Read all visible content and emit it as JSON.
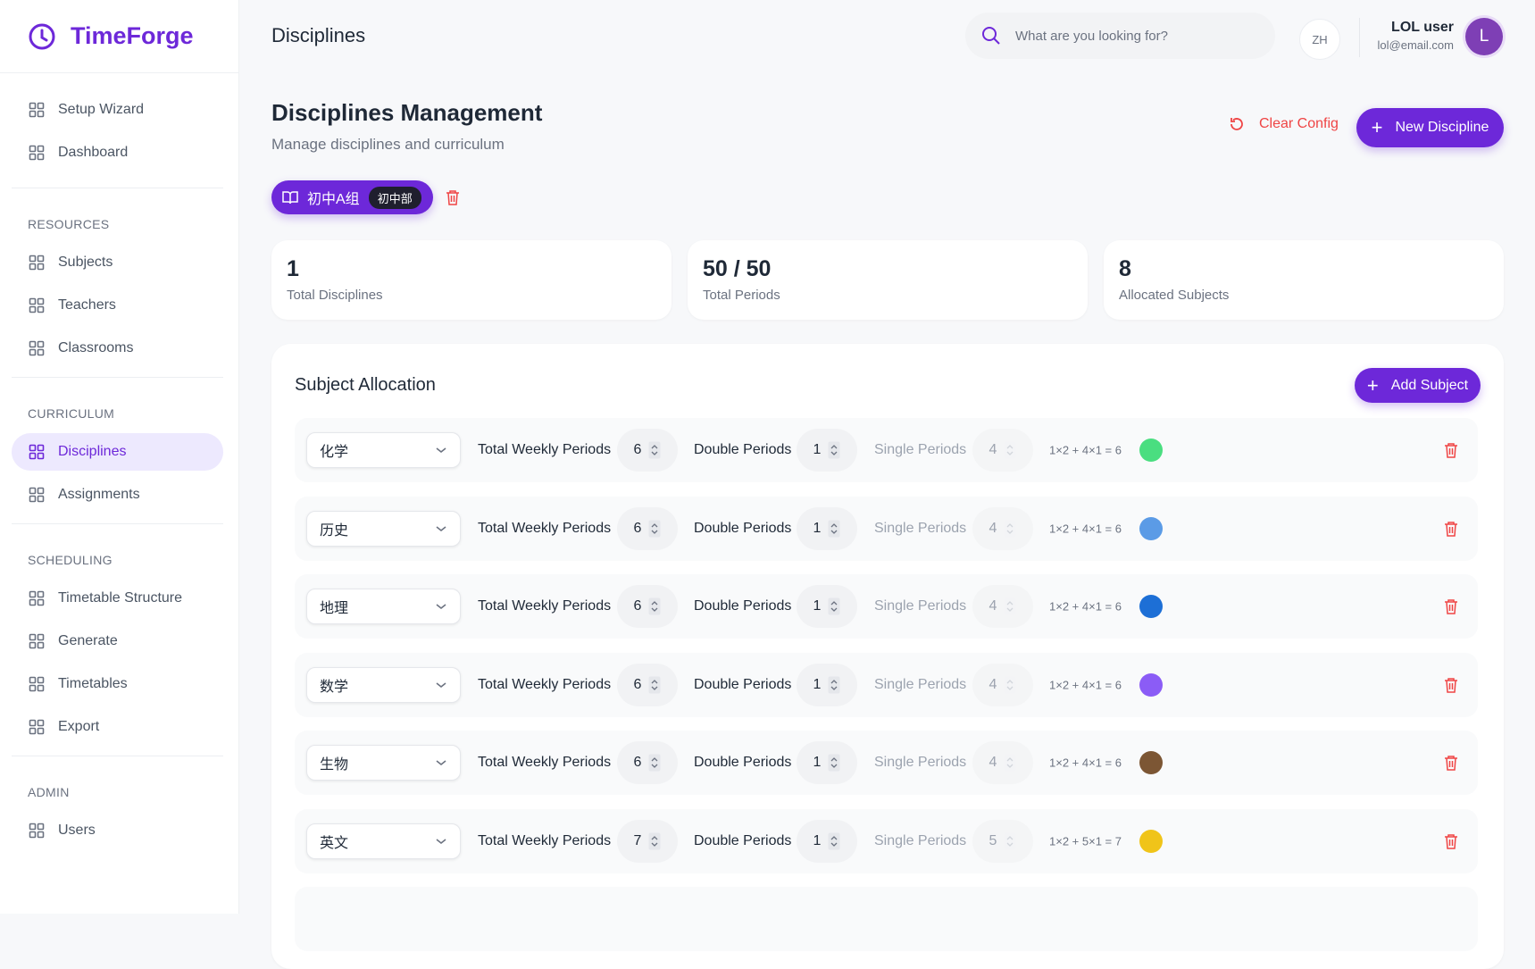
{
  "brand": "TimeForge",
  "sidebar": {
    "top": [
      {
        "label": "Setup Wizard"
      },
      {
        "label": "Dashboard"
      }
    ],
    "sections": [
      {
        "title": "RESOURCES",
        "items": [
          {
            "label": "Subjects"
          },
          {
            "label": "Teachers"
          },
          {
            "label": "Classrooms"
          }
        ]
      },
      {
        "title": "CURRICULUM",
        "items": [
          {
            "label": "Disciplines",
            "active": true
          },
          {
            "label": "Assignments"
          }
        ]
      },
      {
        "title": "SCHEDULING",
        "items": [
          {
            "label": "Timetable Structure"
          },
          {
            "label": "Generate"
          },
          {
            "label": "Timetables"
          },
          {
            "label": "Export"
          }
        ]
      },
      {
        "title": "ADMIN",
        "items": [
          {
            "label": "Users"
          }
        ]
      }
    ]
  },
  "header": {
    "title": "Disciplines",
    "search_placeholder": "What are you looking for?",
    "language": "ZH",
    "user_name": "LOL user",
    "user_email": "lol@email.com",
    "avatar": "L"
  },
  "page": {
    "title": "Disciplines Management",
    "subtitle": "Manage disciplines and curriculum",
    "clear_button": "Clear Config",
    "new_button": "New Discipline"
  },
  "discipline_tab": {
    "name": "初中A组",
    "tag": "初中部"
  },
  "stats": [
    {
      "value": 1,
      "label": "Total Disciplines"
    },
    {
      "value": "50 / 50",
      "label": "Total Periods"
    },
    {
      "value": 8,
      "label": "Allocated Subjects"
    }
  ],
  "allocation": {
    "title": "Subject Allocation",
    "add_button": "Add Subject",
    "labels": {
      "total": "Total Weekly Periods",
      "double": "Double Periods",
      "single": "Single Periods"
    },
    "rows": [
      {
        "subject": "化学",
        "total": 6,
        "double": 1,
        "single": 4,
        "formula": "1×2 + 4×1 = 6",
        "color": "#4ade80"
      },
      {
        "subject": "历史",
        "total": 6,
        "double": 1,
        "single": 4,
        "formula": "1×2 + 4×1 = 6",
        "color": "#5b9be6"
      },
      {
        "subject": "地理",
        "total": 6,
        "double": 1,
        "single": 4,
        "formula": "1×2 + 4×1 = 6",
        "color": "#1d6fd6"
      },
      {
        "subject": "数学",
        "total": 6,
        "double": 1,
        "single": 4,
        "formula": "1×2 + 4×1 = 6",
        "color": "#8b5cf6"
      },
      {
        "subject": "生物",
        "total": 6,
        "double": 1,
        "single": 4,
        "formula": "1×2 + 4×1 = 6",
        "color": "#7c5634"
      },
      {
        "subject": "英文",
        "total": 7,
        "double": 1,
        "single": 5,
        "formula": "1×2 + 5×1 = 7",
        "color": "#f0c419"
      }
    ]
  }
}
